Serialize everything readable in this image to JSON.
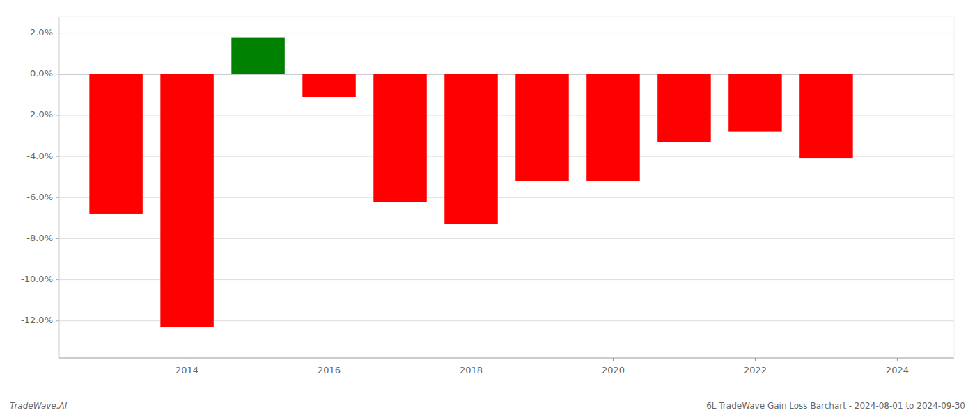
{
  "chart_data": {
    "type": "bar",
    "x": [
      2013,
      2014,
      2015,
      2016,
      2017,
      2018,
      2019,
      2020,
      2021,
      2022,
      2023
    ],
    "values": [
      -0.068,
      -0.123,
      0.018,
      -0.011,
      -0.062,
      -0.073,
      -0.052,
      -0.052,
      -0.033,
      -0.028,
      -0.041
    ],
    "colors": [
      "#ff0000",
      "#ff0000",
      "#008000",
      "#ff0000",
      "#ff0000",
      "#ff0000",
      "#ff0000",
      "#ff0000",
      "#ff0000",
      "#ff0000",
      "#ff0000"
    ],
    "xlim": [
      2012.2,
      2024.8
    ],
    "xticks": [
      2014,
      2016,
      2018,
      2020,
      2022,
      2024
    ],
    "ylim": [
      -0.138,
      0.028
    ],
    "yticks": [
      {
        "value": -0.12,
        "label": "-12.0%"
      },
      {
        "value": -0.1,
        "label": "-10.0%"
      },
      {
        "value": -0.08,
        "label": "-8.0%"
      },
      {
        "value": -0.06,
        "label": "-6.0%"
      },
      {
        "value": -0.04,
        "label": "-4.0%"
      },
      {
        "value": -0.02,
        "label": "-2.0%"
      },
      {
        "value": 0.0,
        "label": "0.0%"
      },
      {
        "value": 0.02,
        "label": "2.0%"
      }
    ],
    "grid": true,
    "annotations": [
      "TradeWave.AI",
      "6L TradeWave Gain Loss Barchart - 2024-08-01 to 2024-09-30"
    ]
  }
}
